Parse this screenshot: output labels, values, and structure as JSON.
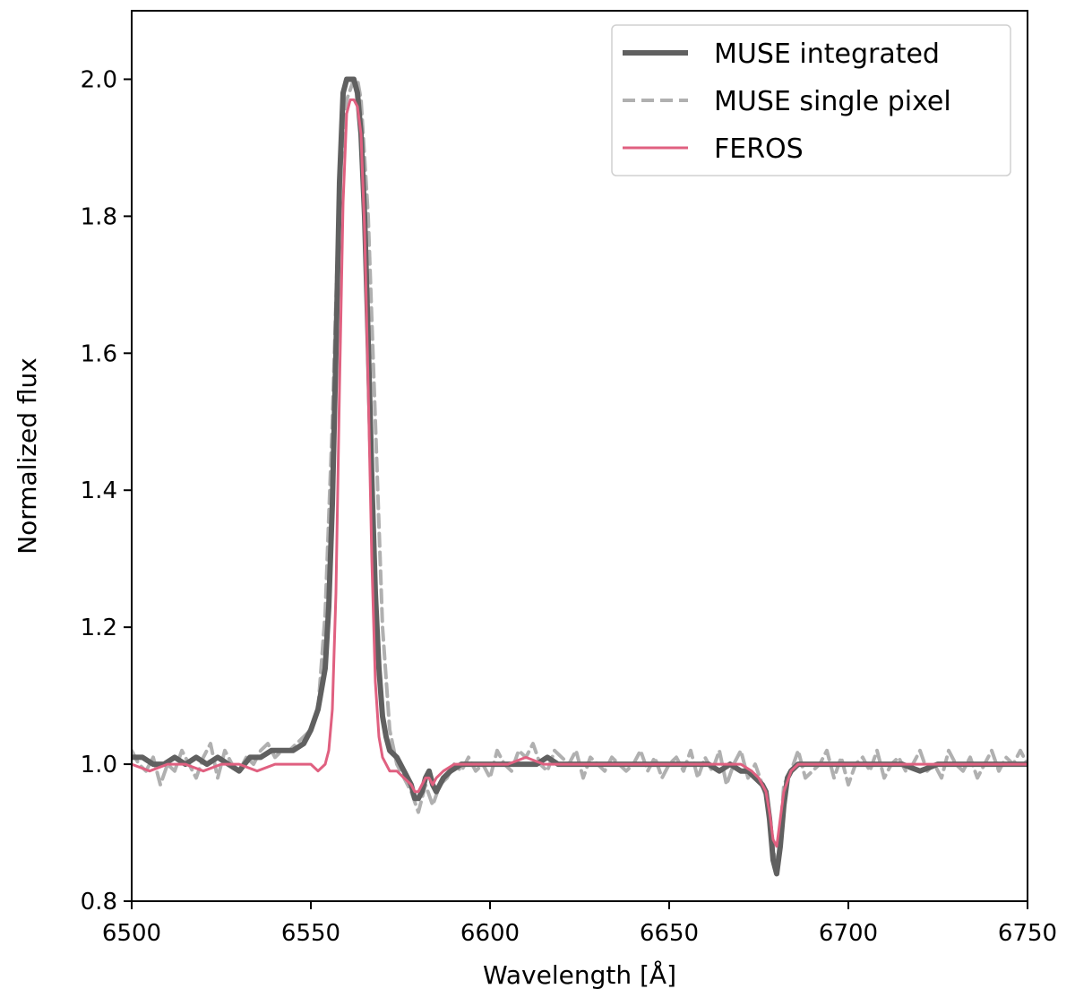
{
  "chart_data": {
    "type": "line",
    "title": "",
    "xlabel": "Wavelength [Å]",
    "ylabel": "Normalized flux",
    "xlim": [
      6500,
      6750
    ],
    "ylim": [
      0.8,
      2.1
    ],
    "x_ticks": [
      6500,
      6550,
      6600,
      6650,
      6700,
      6750
    ],
    "y_ticks": [
      0.8,
      1.0,
      1.2,
      1.4,
      1.6,
      1.8,
      2.0
    ],
    "x_tick_labels": [
      "6500",
      "6550",
      "6600",
      "6650",
      "6700",
      "6750"
    ],
    "y_tick_labels": [
      "0.8",
      "1.0",
      "1.2",
      "1.4",
      "1.6",
      "1.8",
      "2.0"
    ],
    "grid": false,
    "legend_position": "top-right",
    "series": [
      {
        "name": "MUSE single pixel",
        "color": "#b0b0b0",
        "style": "dashed",
        "x": [
          6500,
          6502,
          6504,
          6506,
          6508,
          6510,
          6512,
          6514,
          6516,
          6518,
          6520,
          6522,
          6524,
          6526,
          6528,
          6530,
          6532,
          6534,
          6536,
          6538,
          6540,
          6542,
          6544,
          6546,
          6548,
          6550,
          6552,
          6554,
          6556,
          6558,
          6560,
          6562,
          6563,
          6564,
          6566,
          6568,
          6570,
          6572,
          6574,
          6576,
          6578,
          6580,
          6582,
          6584,
          6586,
          6588,
          6590,
          6592,
          6594,
          6596,
          6598,
          6600,
          6602,
          6604,
          6606,
          6608,
          6610,
          6612,
          6614,
          6616,
          6618,
          6620,
          6622,
          6624,
          6626,
          6628,
          6630,
          6632,
          6634,
          6636,
          6638,
          6640,
          6642,
          6644,
          6646,
          6648,
          6650,
          6652,
          6654,
          6656,
          6658,
          6660,
          6662,
          6664,
          6666,
          6668,
          6670,
          6672,
          6674,
          6676,
          6678,
          6679,
          6680,
          6681,
          6682,
          6684,
          6686,
          6688,
          6690,
          6692,
          6694,
          6696,
          6698,
          6700,
          6702,
          6704,
          6706,
          6708,
          6710,
          6712,
          6714,
          6716,
          6718,
          6720,
          6722,
          6724,
          6726,
          6728,
          6730,
          6732,
          6734,
          6736,
          6738,
          6740,
          6742,
          6744,
          6746,
          6748,
          6750
        ],
        "y": [
          1.02,
          1.0,
          0.99,
          1.01,
          0.97,
          1.0,
          0.99,
          1.02,
          1.0,
          0.98,
          1.01,
          1.03,
          0.98,
          1.02,
          1.0,
          0.99,
          1.01,
          1.0,
          1.02,
          1.03,
          1.01,
          1.02,
          1.02,
          1.03,
          1.04,
          1.05,
          1.08,
          1.22,
          1.5,
          1.85,
          1.97,
          2.0,
          2.0,
          1.97,
          1.8,
          1.5,
          1.2,
          1.05,
          1.0,
          0.98,
          0.96,
          0.93,
          0.97,
          0.94,
          0.97,
          0.98,
          1.0,
          0.99,
          1.01,
          0.99,
          1.0,
          0.98,
          1.02,
          1.0,
          0.99,
          1.02,
          1.01,
          1.03,
          1.0,
          0.99,
          1.02,
          1.01,
          1.0,
          1.02,
          0.98,
          1.01,
          1.0,
          0.99,
          1.01,
          1.0,
          0.99,
          1.0,
          1.02,
          0.99,
          1.01,
          0.98,
          1.0,
          1.01,
          0.99,
          1.02,
          0.98,
          1.01,
          0.99,
          1.02,
          0.97,
          1.0,
          1.02,
          0.98,
          1.0,
          0.97,
          0.93,
          0.88,
          0.84,
          0.9,
          0.97,
          0.99,
          1.02,
          0.98,
          0.99,
          1.0,
          1.02,
          0.98,
          1.01,
          0.97,
          1.0,
          1.01,
          0.99,
          1.02,
          0.98,
          1.0,
          1.01,
          0.99,
          1.0,
          1.02,
          0.99,
          1.0,
          0.98,
          1.02,
          1.0,
          0.99,
          1.01,
          0.98,
          1.0,
          1.02,
          0.99,
          1.01,
          1.0,
          1.02,
          1.0
        ]
      },
      {
        "name": "MUSE integrated",
        "color": "#606060",
        "style": "solid",
        "x": [
          6500,
          6503,
          6506,
          6509,
          6512,
          6515,
          6518,
          6521,
          6524,
          6527,
          6530,
          6533,
          6536,
          6539,
          6542,
          6545,
          6548,
          6550,
          6552,
          6554,
          6555,
          6556,
          6557,
          6558,
          6559,
          6560,
          6561,
          6562,
          6563,
          6564,
          6565,
          6566,
          6567,
          6568,
          6569,
          6570,
          6571,
          6572,
          6574,
          6576,
          6578,
          6579,
          6580,
          6581,
          6582,
          6583,
          6584,
          6585,
          6587,
          6589,
          6592,
          6595,
          6598,
          6601,
          6604,
          6607,
          6610,
          6613,
          6616,
          6619,
          6622,
          6625,
          6628,
          6631,
          6634,
          6637,
          6640,
          6643,
          6646,
          6649,
          6652,
          6655,
          6658,
          6661,
          6664,
          6667,
          6670,
          6672,
          6674,
          6676,
          6677,
          6678,
          6679,
          6680,
          6681,
          6682,
          6683,
          6684,
          6686,
          6690,
          6695,
          6700,
          6705,
          6710,
          6715,
          6720,
          6725,
          6730,
          6735,
          6740,
          6745,
          6750
        ],
        "y": [
          1.01,
          1.01,
          1.0,
          1.0,
          1.01,
          1.0,
          1.01,
          1.0,
          1.01,
          1.0,
          0.99,
          1.01,
          1.01,
          1.02,
          1.02,
          1.02,
          1.03,
          1.05,
          1.08,
          1.14,
          1.23,
          1.38,
          1.6,
          1.85,
          1.98,
          2.0,
          2.0,
          2.0,
          1.98,
          1.92,
          1.8,
          1.62,
          1.42,
          1.25,
          1.14,
          1.07,
          1.04,
          1.02,
          1.01,
          0.99,
          0.97,
          0.95,
          0.95,
          0.96,
          0.98,
          0.99,
          0.97,
          0.96,
          0.98,
          0.99,
          1.0,
          1.0,
          1.0,
          1.0,
          1.0,
          1.0,
          1.0,
          1.0,
          1.01,
          1.0,
          1.0,
          1.0,
          1.0,
          1.0,
          1.0,
          1.0,
          1.0,
          1.0,
          1.0,
          1.0,
          1.0,
          1.0,
          1.0,
          1.0,
          0.99,
          1.0,
          0.99,
          0.99,
          0.98,
          0.97,
          0.96,
          0.92,
          0.86,
          0.84,
          0.88,
          0.94,
          0.98,
          0.99,
          1.0,
          1.0,
          1.0,
          1.0,
          1.0,
          1.0,
          1.0,
          0.99,
          1.0,
          1.0,
          1.0,
          1.0,
          1.0,
          1.0
        ]
      },
      {
        "name": "FEROS",
        "color": "#e06080",
        "style": "solid",
        "x": [
          6500,
          6505,
          6510,
          6515,
          6520,
          6525,
          6530,
          6535,
          6540,
          6545,
          6550,
          6552,
          6554,
          6555,
          6556,
          6557,
          6558,
          6559,
          6560,
          6561,
          6562,
          6563,
          6564,
          6565,
          6566,
          6567,
          6568,
          6569,
          6570,
          6571,
          6572,
          6574,
          6576,
          6578,
          6579,
          6580,
          6581,
          6582,
          6583,
          6584,
          6585,
          6587,
          6590,
          6595,
          6600,
          6605,
          6610,
          6615,
          6620,
          6625,
          6630,
          6640,
          6650,
          6660,
          6670,
          6673,
          6675,
          6677,
          6678,
          6679,
          6680,
          6681,
          6682,
          6684,
          6686,
          6690,
          6700,
          6710,
          6720,
          6730,
          6740,
          6750
        ],
        "y": [
          1.0,
          0.99,
          1.0,
          1.0,
          0.99,
          1.0,
          1.0,
          0.99,
          1.0,
          1.0,
          1.0,
          0.99,
          1.0,
          1.02,
          1.08,
          1.25,
          1.55,
          1.82,
          1.95,
          1.97,
          1.97,
          1.96,
          1.92,
          1.78,
          1.55,
          1.3,
          1.12,
          1.04,
          1.01,
          1.0,
          0.99,
          0.99,
          0.98,
          0.97,
          0.96,
          0.96,
          0.97,
          0.98,
          0.98,
          0.97,
          0.98,
          0.99,
          1.0,
          1.0,
          1.0,
          1.0,
          1.01,
          1.0,
          1.0,
          1.0,
          1.0,
          1.0,
          1.0,
          1.0,
          1.0,
          0.99,
          0.98,
          0.96,
          0.93,
          0.89,
          0.88,
          0.92,
          0.96,
          0.99,
          1.0,
          1.0,
          1.0,
          1.0,
          1.0,
          1.0,
          1.0,
          1.0
        ]
      }
    ],
    "legend": [
      {
        "name": "MUSE integrated",
        "color": "#606060",
        "style": "solid"
      },
      {
        "name": "MUSE single pixel",
        "color": "#b0b0b0",
        "style": "dashed"
      },
      {
        "name": "FEROS",
        "color": "#e06080",
        "style": "solid"
      }
    ]
  }
}
